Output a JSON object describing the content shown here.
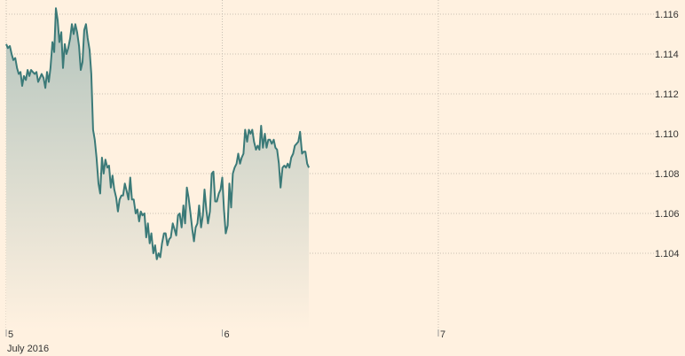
{
  "colors": {
    "background": "#fff1e0",
    "line": "#3b7a78",
    "area_top": "#b3c4bd",
    "area_bottom": "#fff1e0",
    "grid": "#c8beb2",
    "text": "#333333"
  },
  "chart_data": {
    "type": "area",
    "title": "",
    "xlabel": "",
    "ylabel": "",
    "grid": true,
    "ylim": [
      1.102,
      1.1165
    ],
    "y_ticks": [
      "1.104",
      "1.106",
      "1.108",
      "1.110",
      "1.112",
      "1.114",
      "1.116"
    ],
    "x_ticks": [
      {
        "label": "5",
        "x": 0
      },
      {
        "label": "6",
        "x": 1
      },
      {
        "label": "7",
        "x": 2
      }
    ],
    "x_sublabel": "July 2016",
    "xlim": [
      0,
      3.2
    ],
    "series": [
      {
        "values": [
          [
            0.0,
            1.1145
          ],
          [
            0.008,
            1.1143
          ],
          [
            0.017,
            1.1144
          ],
          [
            0.025,
            1.114
          ],
          [
            0.033,
            1.1137
          ],
          [
            0.042,
            1.1138
          ],
          [
            0.05,
            1.1133
          ],
          [
            0.058,
            1.113
          ],
          [
            0.066,
            1.1131
          ],
          [
            0.074,
            1.1124
          ],
          [
            0.082,
            1.1129
          ],
          [
            0.091,
            1.1127
          ],
          [
            0.099,
            1.1132
          ],
          [
            0.107,
            1.1129
          ],
          [
            0.115,
            1.1132
          ],
          [
            0.123,
            1.1131
          ],
          [
            0.132,
            1.113
          ],
          [
            0.14,
            1.1131
          ],
          [
            0.148,
            1.1126
          ],
          [
            0.156,
            1.1128
          ],
          [
            0.164,
            1.113
          ],
          [
            0.173,
            1.1128
          ],
          [
            0.181,
            1.1123
          ],
          [
            0.189,
            1.1131
          ],
          [
            0.197,
            1.1126
          ],
          [
            0.205,
            1.1133
          ],
          [
            0.214,
            1.1146
          ],
          [
            0.222,
            1.1141
          ],
          [
            0.23,
            1.1163
          ],
          [
            0.238,
            1.1157
          ],
          [
            0.246,
            1.1146
          ],
          [
            0.255,
            1.1151
          ],
          [
            0.263,
            1.1133
          ],
          [
            0.271,
            1.1145
          ],
          [
            0.279,
            1.114
          ],
          [
            0.287,
            1.1143
          ],
          [
            0.296,
            1.1148
          ],
          [
            0.304,
            1.1155
          ],
          [
            0.312,
            1.115
          ],
          [
            0.32,
            1.1155
          ],
          [
            0.328,
            1.1151
          ],
          [
            0.337,
            1.1144
          ],
          [
            0.345,
            1.1132
          ],
          [
            0.353,
            1.1136
          ],
          [
            0.361,
            1.1152
          ],
          [
            0.369,
            1.1155
          ],
          [
            0.377,
            1.1148
          ],
          [
            0.386,
            1.1142
          ],
          [
            0.394,
            1.113
          ],
          [
            0.402,
            1.1102
          ],
          [
            0.41,
            1.1097
          ],
          [
            0.418,
            1.1088
          ],
          [
            0.427,
            1.1075
          ],
          [
            0.435,
            1.107
          ],
          [
            0.443,
            1.1088
          ],
          [
            0.451,
            1.108
          ],
          [
            0.459,
            1.1087
          ],
          [
            0.468,
            1.1083
          ],
          [
            0.476,
            1.1084
          ],
          [
            0.484,
            1.1073
          ],
          [
            0.492,
            1.1079
          ],
          [
            0.5,
            1.1072
          ],
          [
            0.509,
            1.1068
          ],
          [
            0.517,
            1.1061
          ],
          [
            0.525,
            1.1067
          ],
          [
            0.533,
            1.1069
          ],
          [
            0.541,
            1.1069
          ],
          [
            0.549,
            1.1075
          ],
          [
            0.558,
            1.1071
          ],
          [
            0.566,
            1.1067
          ],
          [
            0.574,
            1.1078
          ],
          [
            0.582,
            1.1067
          ],
          [
            0.59,
            1.1067
          ],
          [
            0.599,
            1.106
          ],
          [
            0.607,
            1.1062
          ],
          [
            0.615,
            1.1056
          ],
          [
            0.623,
            1.1061
          ],
          [
            0.631,
            1.1059
          ],
          [
            0.64,
            1.106
          ],
          [
            0.648,
            1.1048
          ],
          [
            0.656,
            1.1055
          ],
          [
            0.664,
            1.1045
          ],
          [
            0.672,
            1.105
          ],
          [
            0.681,
            1.104
          ],
          [
            0.689,
            1.1044
          ],
          [
            0.697,
            1.1037
          ],
          [
            0.705,
            1.104
          ],
          [
            0.713,
            1.1038
          ],
          [
            0.721,
            1.1045
          ],
          [
            0.73,
            1.105
          ],
          [
            0.738,
            1.105
          ],
          [
            0.746,
            1.1044
          ],
          [
            0.754,
            1.1047
          ],
          [
            0.762,
            1.1048
          ],
          [
            0.771,
            1.1055
          ],
          [
            0.779,
            1.1052
          ],
          [
            0.787,
            1.1049
          ],
          [
            0.795,
            1.1059
          ],
          [
            0.803,
            1.106
          ],
          [
            0.812,
            1.1053
          ],
          [
            0.82,
            1.1064
          ],
          [
            0.828,
            1.1055
          ],
          [
            0.836,
            1.1073
          ],
          [
            0.844,
            1.1068
          ],
          [
            0.853,
            1.106
          ],
          [
            0.861,
            1.1052
          ],
          [
            0.869,
            1.1046
          ],
          [
            0.877,
            1.1053
          ],
          [
            0.885,
            1.1055
          ],
          [
            0.893,
            1.1064
          ],
          [
            0.902,
            1.1053
          ],
          [
            0.91,
            1.1059
          ],
          [
            0.918,
            1.1072
          ],
          [
            0.926,
            1.1062
          ],
          [
            0.934,
            1.1055
          ],
          [
            0.943,
            1.1061
          ],
          [
            0.951,
            1.108
          ],
          [
            0.959,
            1.1081
          ],
          [
            0.967,
            1.1066
          ],
          [
            0.975,
            1.1066
          ],
          [
            0.984,
            1.107
          ],
          [
            0.992,
            1.1072
          ],
          [
            1.0,
            1.1078
          ],
          [
            1.008,
            1.1062
          ],
          [
            1.016,
            1.105
          ],
          [
            1.025,
            1.1054
          ],
          [
            1.033,
            1.1075
          ],
          [
            1.041,
            1.1063
          ],
          [
            1.049,
            1.108
          ],
          [
            1.057,
            1.1083
          ],
          [
            1.066,
            1.1085
          ],
          [
            1.074,
            1.109
          ],
          [
            1.082,
            1.1085
          ],
          [
            1.09,
            1.1088
          ],
          [
            1.098,
            1.109
          ],
          [
            1.106,
            1.1102
          ],
          [
            1.115,
            1.1096
          ],
          [
            1.123,
            1.1102
          ],
          [
            1.131,
            1.11
          ],
          [
            1.139,
            1.1102
          ],
          [
            1.147,
            1.1096
          ],
          [
            1.156,
            1.1092
          ],
          [
            1.164,
            1.1094
          ],
          [
            1.172,
            1.1092
          ],
          [
            1.18,
            1.1104
          ],
          [
            1.188,
            1.1093
          ],
          [
            1.197,
            1.11
          ],
          [
            1.205,
            1.1093
          ],
          [
            1.213,
            1.1097
          ],
          [
            1.221,
            1.1097
          ],
          [
            1.229,
            1.1095
          ],
          [
            1.238,
            1.1097
          ],
          [
            1.246,
            1.1093
          ],
          [
            1.254,
            1.1092
          ],
          [
            1.262,
            1.1085
          ],
          [
            1.27,
            1.1073
          ],
          [
            1.279,
            1.1083
          ],
          [
            1.287,
            1.1084
          ],
          [
            1.295,
            1.1083
          ],
          [
            1.303,
            1.1085
          ],
          [
            1.311,
            1.1083
          ],
          [
            1.319,
            1.1088
          ],
          [
            1.328,
            1.109
          ],
          [
            1.336,
            1.1094
          ],
          [
            1.344,
            1.1095
          ],
          [
            1.352,
            1.1096
          ],
          [
            1.36,
            1.1101
          ],
          [
            1.369,
            1.109
          ],
          [
            1.377,
            1.1091
          ],
          [
            1.385,
            1.1091
          ],
          [
            1.393,
            1.1085
          ],
          [
            1.401,
            1.1083
          ]
        ]
      }
    ]
  }
}
